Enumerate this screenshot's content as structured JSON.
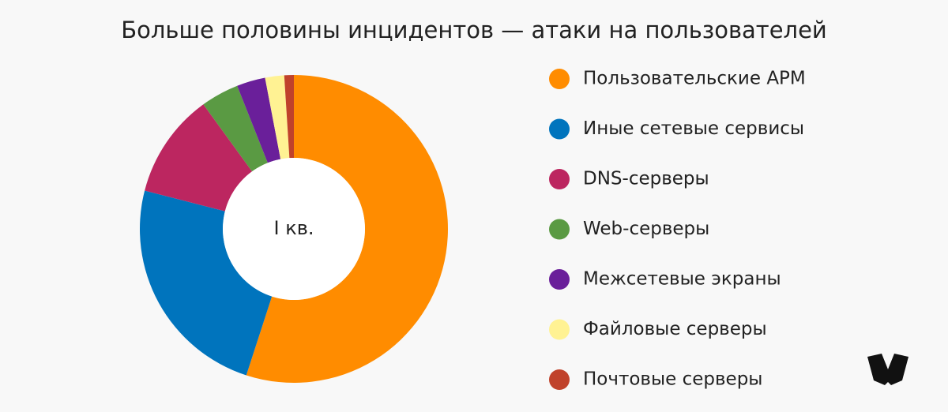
{
  "chart_data": {
    "type": "donut",
    "title": "Больше половины инцидентов — атаки на пользователей",
    "center_label": "I кв.",
    "categories": [
      "Пользовательские АРМ",
      "Иные сетевые сервисы",
      "DNS-серверы",
      "Web-серверы",
      "Межсетевые экраны",
      "Файловые серверы",
      "Почтовые серверы"
    ],
    "values": [
      55,
      24,
      11,
      4,
      3,
      2,
      1
    ],
    "colors": [
      "#ff8c00",
      "#0074bd",
      "#bc2660",
      "#5a9a43",
      "#6a1f9a",
      "#fff293",
      "#c0422b"
    ],
    "legend": "right"
  }
}
